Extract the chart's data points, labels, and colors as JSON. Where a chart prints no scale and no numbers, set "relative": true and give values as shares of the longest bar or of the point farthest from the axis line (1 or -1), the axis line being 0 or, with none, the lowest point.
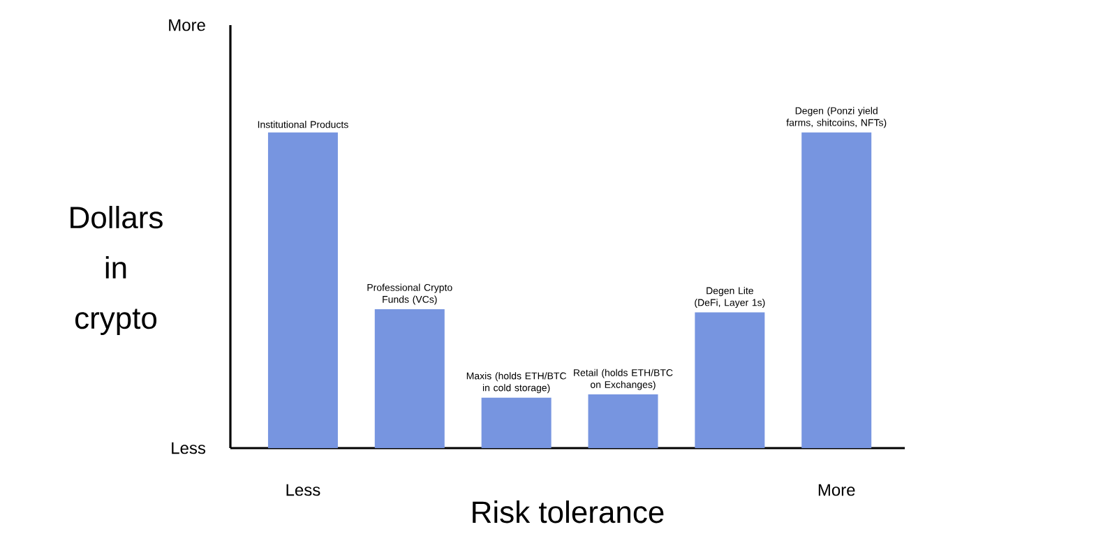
{
  "chart_data": {
    "type": "bar",
    "relative": true,
    "categories": [
      "Institutional Products",
      "Professional Crypto Funds (VCs)",
      "Maxis (holds ETH/BTC in cold storage)",
      "Retail (holds ETH/BTC on Exchanges)",
      "Degen Lite (DeFi, Layer 1s)",
      "Degen (Ponzi yield farms, shitcoins, NFTs)"
    ],
    "values": [
      1,
      0.44,
      0.16,
      0.17,
      0.43,
      1.0
    ],
    "color": "#7795e0",
    "xlabel": "Risk tolerance",
    "ylabel": "Dollars in crypto",
    "annotations": [
      "More",
      "Less",
      "Less",
      "More"
    ]
  }
}
